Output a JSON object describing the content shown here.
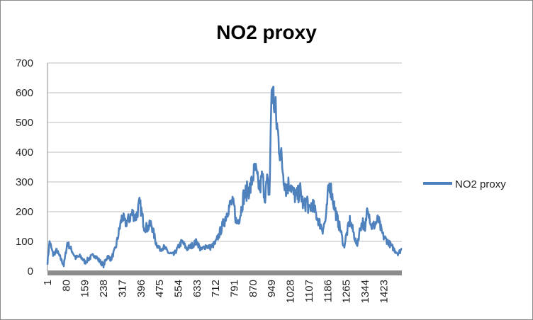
{
  "chart_data": {
    "type": "line",
    "title": "NO2 proxy",
    "xlabel": "",
    "ylabel": "",
    "ylim": [
      0,
      700
    ],
    "yticks": [
      0,
      100,
      200,
      300,
      400,
      500,
      600,
      700
    ],
    "xlim": [
      1,
      1500
    ],
    "xticks": [
      1,
      80,
      159,
      238,
      317,
      396,
      475,
      554,
      633,
      712,
      791,
      870,
      949,
      1028,
      1107,
      1186,
      1265,
      1344,
      1423
    ],
    "grid": true,
    "legend_position": "right",
    "colors": {
      "series": "#4F81BD",
      "grid": "#bfbfbf",
      "axis": "#8c8c8c",
      "baseline": "#8c8c8c"
    },
    "series": [
      {
        "name": "NO2 proxy",
        "x": [
          1,
          10,
          25,
          40,
          55,
          70,
          85,
          100,
          120,
          140,
          160,
          180,
          200,
          220,
          238,
          255,
          270,
          290,
          305,
          317,
          330,
          345,
          360,
          375,
          390,
          396,
          410,
          425,
          440,
          460,
          475,
          495,
          515,
          535,
          554,
          570,
          590,
          610,
          633,
          650,
          670,
          690,
          712,
          730,
          750,
          765,
          780,
          791,
          800,
          815,
          830,
          845,
          860,
          870,
          880,
          890,
          900,
          910,
          920,
          930,
          940,
          945,
          949,
          955,
          962,
          970,
          980,
          990,
          1000,
          1010,
          1028,
          1040,
          1055,
          1070,
          1085,
          1100,
          1107,
          1120,
          1135,
          1150,
          1165,
          1180,
          1186,
          1195,
          1210,
          1225,
          1240,
          1255,
          1265,
          1280,
          1295,
          1310,
          1325,
          1335,
          1344,
          1355,
          1370,
          1385,
          1400,
          1415,
          1423,
          1440,
          1455,
          1470,
          1485,
          1500
        ],
        "values": [
          30,
          100,
          55,
          70,
          45,
          20,
          95,
          75,
          45,
          50,
          30,
          45,
          55,
          35,
          20,
          50,
          40,
          80,
          140,
          185,
          160,
          175,
          195,
          180,
          225,
          210,
          150,
          145,
          160,
          95,
          75,
          80,
          60,
          55,
          80,
          100,
          75,
          85,
          100,
          70,
          85,
          80,
          95,
          130,
          170,
          210,
          230,
          215,
          160,
          185,
          250,
          270,
          280,
          320,
          340,
          300,
          280,
          320,
          250,
          300,
          260,
          450,
          625,
          590,
          560,
          500,
          430,
          380,
          320,
          280,
          300,
          260,
          250,
          270,
          215,
          240,
          200,
          230,
          195,
          165,
          140,
          180,
          250,
          295,
          235,
          180,
          140,
          80,
          120,
          170,
          130,
          85,
          150,
          165,
          130,
          230,
          150,
          155,
          175,
          130,
          115,
          100,
          85,
          70,
          60,
          75
        ]
      }
    ]
  }
}
